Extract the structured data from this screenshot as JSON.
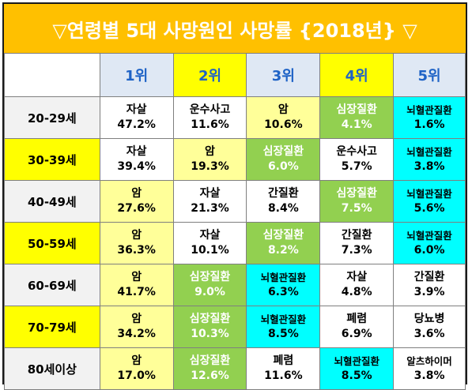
{
  "title": "▽연령별 5대 사망원인 사망률 {2018년} ▽",
  "colors": {
    "title_bg": "#ffc000",
    "rank_header": "#1f63c6",
    "highlight": "#ffff00",
    "light_yellow": "#ffff99",
    "green": "#92d050",
    "cyan": "#00ffff"
  },
  "headers": [
    "1위",
    "2위",
    "3위",
    "4위",
    "5위"
  ],
  "rows": [
    {
      "age": "20-29세",
      "cells": [
        {
          "name": "자살",
          "pct": "47.2%",
          "color": "white"
        },
        {
          "name": "운수사고",
          "pct": "11.6%",
          "color": "white"
        },
        {
          "name": "암",
          "pct": "10.6%",
          "color": "yellow"
        },
        {
          "name": "심장질환",
          "pct": "4.1%",
          "color": "green"
        },
        {
          "name": "뇌혈관질환",
          "pct": "1.6%",
          "color": "cyan"
        }
      ]
    },
    {
      "age": "30-39세",
      "cells": [
        {
          "name": "자살",
          "pct": "39.4%",
          "color": "white"
        },
        {
          "name": "암",
          "pct": "19.3%",
          "color": "yellow"
        },
        {
          "name": "심장질환",
          "pct": "6.0%",
          "color": "green"
        },
        {
          "name": "운수사고",
          "pct": "5.7%",
          "color": "white"
        },
        {
          "name": "뇌혈관질환",
          "pct": "3.8%",
          "color": "cyan"
        }
      ]
    },
    {
      "age": "40-49세",
      "cells": [
        {
          "name": "암",
          "pct": "27.6%",
          "color": "yellow"
        },
        {
          "name": "자살",
          "pct": "21.3%",
          "color": "white"
        },
        {
          "name": "간질환",
          "pct": "8.4%",
          "color": "white"
        },
        {
          "name": "심장질환",
          "pct": "7.5%",
          "color": "green"
        },
        {
          "name": "뇌혈관질환",
          "pct": "5.6%",
          "color": "cyan"
        }
      ]
    },
    {
      "age": "50-59세",
      "cells": [
        {
          "name": "암",
          "pct": "36.3%",
          "color": "yellow"
        },
        {
          "name": "자살",
          "pct": "10.1%",
          "color": "white"
        },
        {
          "name": "심장질환",
          "pct": "8.2%",
          "color": "green"
        },
        {
          "name": "간질환",
          "pct": "7.3%",
          "color": "white"
        },
        {
          "name": "뇌혈관질환",
          "pct": "6.0%",
          "color": "cyan"
        }
      ]
    },
    {
      "age": "60-69세",
      "cells": [
        {
          "name": "암",
          "pct": "41.7%",
          "color": "yellow"
        },
        {
          "name": "심장질환",
          "pct": "9.0%",
          "color": "green"
        },
        {
          "name": "뇌혈관질환",
          "pct": "6.3%",
          "color": "cyan"
        },
        {
          "name": "자살",
          "pct": "4.8%",
          "color": "white"
        },
        {
          "name": "간질환",
          "pct": "3.9%",
          "color": "white"
        }
      ]
    },
    {
      "age": "70-79세",
      "cells": [
        {
          "name": "암",
          "pct": "34.2%",
          "color": "yellow"
        },
        {
          "name": "심장질환",
          "pct": "10.3%",
          "color": "green"
        },
        {
          "name": "뇌혈관질환",
          "pct": "8.5%",
          "color": "cyan"
        },
        {
          "name": "폐렴",
          "pct": "6.9%",
          "color": "white"
        },
        {
          "name": "당뇨병",
          "pct": "3.6%",
          "color": "white"
        }
      ]
    },
    {
      "age": "80세이상",
      "cells": [
        {
          "name": "암",
          "pct": "17.0%",
          "color": "yellow"
        },
        {
          "name": "심장질환",
          "pct": "12.6%",
          "color": "green"
        },
        {
          "name": "폐렴",
          "pct": "11.6%",
          "color": "white"
        },
        {
          "name": "뇌혈관질환",
          "pct": "8.5%",
          "color": "cyan"
        },
        {
          "name": "알츠하이머",
          "pct": "3.8%",
          "color": "white"
        }
      ]
    }
  ]
}
